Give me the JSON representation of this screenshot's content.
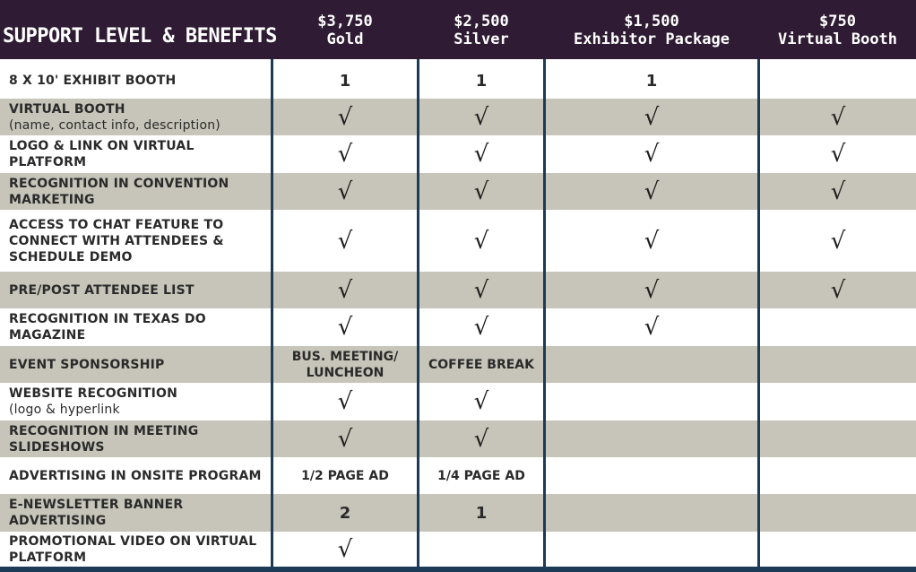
{
  "header": {
    "title": "SUPPORT LEVEL & BENEFITS",
    "columns": [
      {
        "price": "$3,750",
        "name": "Gold"
      },
      {
        "price": "$2,500",
        "name": "Silver"
      },
      {
        "price": "$1,500",
        "name": "Exhibitor Package"
      },
      {
        "price": "$750",
        "name": "Virtual Booth"
      }
    ]
  },
  "check_glyph": "√",
  "rows": [
    {
      "label": "8 X 10' EXHIBIT BOOTH",
      "cells": [
        "1",
        "1",
        "1",
        ""
      ]
    },
    {
      "label": "VIRTUAL BOOTH",
      "sublabel": "(name, contact info, description)",
      "cells": [
        "√",
        "√",
        "√",
        "√"
      ]
    },
    {
      "label": "LOGO & LINK ON VIRTUAL PLATFORM",
      "cells": [
        "√",
        "√",
        "√",
        "√"
      ]
    },
    {
      "label": "RECOGNITION IN CONVENTION MARKETING",
      "cells": [
        "√",
        "√",
        "√",
        "√"
      ]
    },
    {
      "label": "ACCESS TO CHAT FEATURE TO CONNECT WITH ATTENDEES & SCHEDULE DEMO",
      "cells": [
        "√",
        "√",
        "√",
        "√"
      ]
    },
    {
      "label": "PRE/POST ATTENDEE LIST",
      "cells": [
        "√",
        "√",
        "√",
        "√"
      ]
    },
    {
      "label": "RECOGNITION IN TEXAS DO MAGAZINE",
      "cells": [
        "√",
        "√",
        "√",
        ""
      ]
    },
    {
      "label": "EVENT SPONSORSHIP",
      "cells": [
        "BUS. MEETING/ LUNCHEON",
        "COFFEE BREAK",
        "",
        ""
      ]
    },
    {
      "label": "WEBSITE RECOGNITION",
      "sublabel": "(logo & hyperlink",
      "cells": [
        "√",
        "√",
        "",
        ""
      ]
    },
    {
      "label": "RECOGNITION IN MEETING SLIDESHOWS",
      "cells": [
        "√",
        "√",
        "",
        ""
      ]
    },
    {
      "label": "ADVERTISING IN ONSITE PROGRAM",
      "cells": [
        "1/2 PAGE AD",
        "1/4 PAGE AD",
        "",
        ""
      ]
    },
    {
      "label": "E-NEWSLETTER BANNER ADVERTISING",
      "cells": [
        "2",
        "1",
        "",
        ""
      ]
    },
    {
      "label": "PROMOTIONAL VIDEO ON VIRTUAL PLATFORM",
      "cells": [
        "√",
        "",
        "",
        ""
      ]
    }
  ]
}
